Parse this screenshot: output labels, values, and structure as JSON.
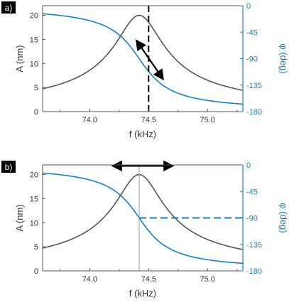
{
  "chart_data": [
    {
      "panel_label": "a)",
      "type": "line",
      "xlabel": "f (kHz)",
      "ylabel_left": "A (nm)",
      "ylabel_right": "φ (deg)",
      "xlim": [
        73.6,
        75.3
      ],
      "ylim_left": [
        0,
        22
      ],
      "ylim_right": [
        -180,
        0
      ],
      "x_ticks": [
        74.0,
        74.5,
        75.0
      ],
      "x_tick_labels": [
        "74.0",
        "74.5",
        "75.0"
      ],
      "y_left_ticks": [
        0,
        5,
        10,
        15,
        20
      ],
      "y_left_tick_labels": [
        "0",
        "5",
        "10",
        "15",
        "20"
      ],
      "y_right_ticks": [
        0,
        -45,
        -90,
        -135,
        -180
      ],
      "y_right_tick_labels": [
        "0",
        "-45",
        "-90",
        "-135",
        "-180"
      ],
      "resonance": {
        "f0": 74.42,
        "amplitude_peak": 20,
        "half_width": 0.2
      },
      "series": [
        {
          "role": "amplitude",
          "axis": "left",
          "color": "#555555"
        },
        {
          "role": "phase",
          "axis": "right",
          "color": "#1a7fc1"
        }
      ],
      "annotations": [
        {
          "kind": "dashed-vertical-line",
          "x": 74.5,
          "color": "#000000"
        },
        {
          "kind": "double-arrow",
          "from": {
            "x": 74.4,
            "phase": -60
          },
          "to": {
            "x": 74.62,
            "phase": -124
          },
          "color": "#000000"
        }
      ]
    },
    {
      "panel_label": "b)",
      "type": "line",
      "xlabel": "f (kHz)",
      "ylabel_left": "A (nm)",
      "ylabel_right": "φ (deg)",
      "xlim": [
        73.6,
        75.3
      ],
      "ylim_left": [
        0,
        22
      ],
      "ylim_right": [
        -180,
        0
      ],
      "x_ticks": [
        74.0,
        74.5,
        75.0
      ],
      "x_tick_labels": [
        "74.0",
        "74.5",
        "75.0"
      ],
      "y_left_ticks": [
        0,
        5,
        10,
        15,
        20
      ],
      "y_left_tick_labels": [
        "0",
        "5",
        "10",
        "15",
        "20"
      ],
      "y_right_ticks": [
        0,
        -45,
        -90,
        -135,
        -180
      ],
      "y_right_tick_labels": [
        "0",
        "-45",
        "-90",
        "-135",
        "-180"
      ],
      "resonance": {
        "f0": 74.42,
        "amplitude_peak": 20,
        "half_width": 0.2
      },
      "series": [
        {
          "role": "amplitude",
          "axis": "left",
          "color": "#555555"
        },
        {
          "role": "phase",
          "axis": "right",
          "color": "#1a7fc1"
        }
      ],
      "annotations": [
        {
          "kind": "vertical-line",
          "x": 74.42,
          "color": "#999999"
        },
        {
          "kind": "dashed-horizontal-line",
          "from_x": 74.42,
          "to_x": 75.3,
          "phase": -90,
          "color": "#1a7fc1"
        },
        {
          "kind": "double-arrow",
          "from": {
            "x": 74.2,
            "amplitude": 21.8
          },
          "to": {
            "x": 74.7,
            "amplitude": 21.8
          },
          "color": "#000000"
        }
      ]
    }
  ]
}
